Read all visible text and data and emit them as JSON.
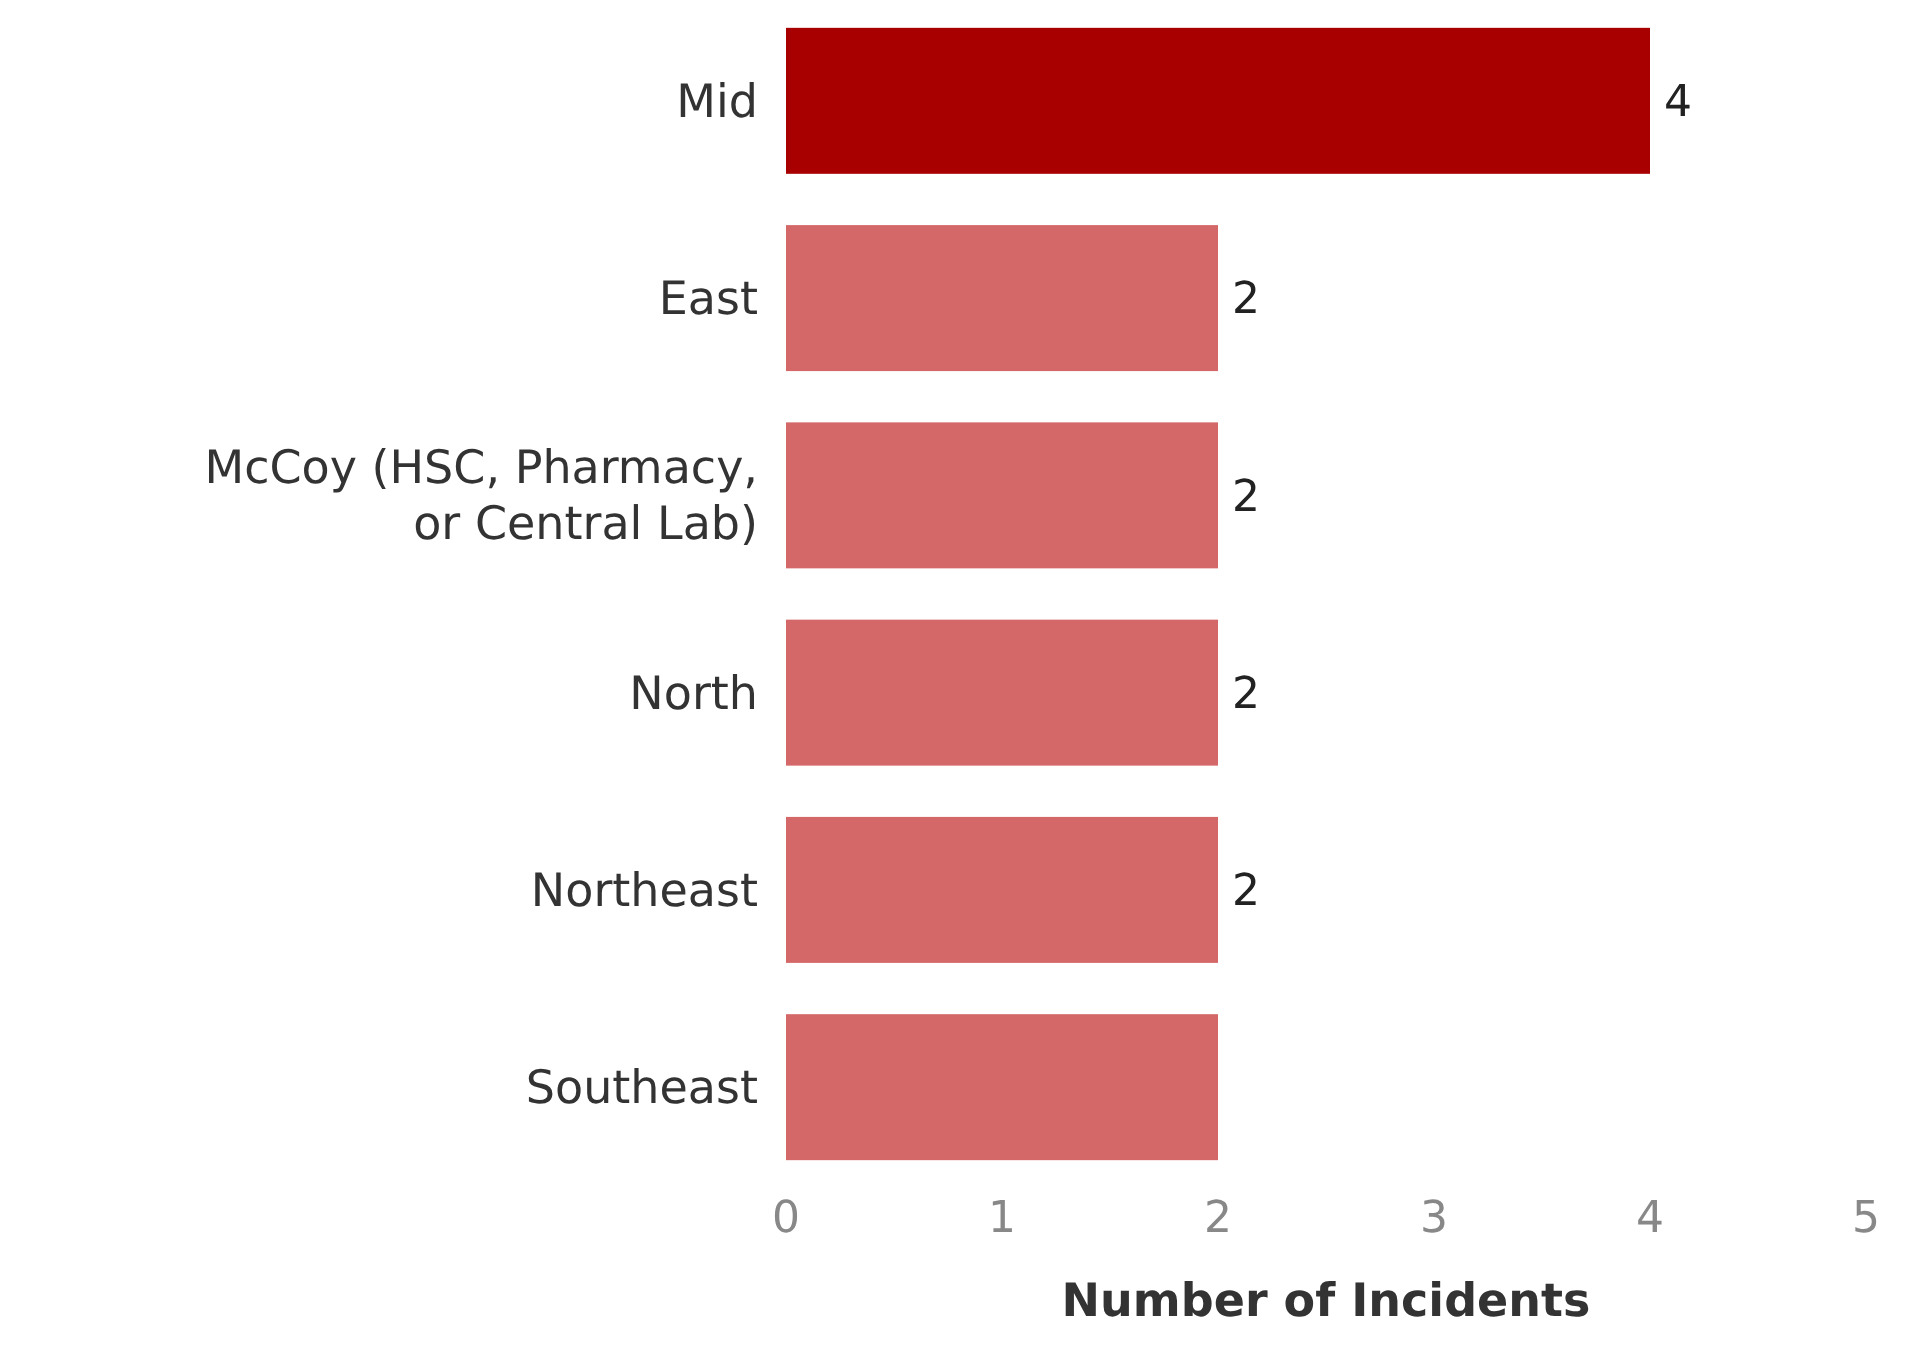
{
  "chart_data": {
    "type": "bar",
    "orientation": "horizontal",
    "xlabel": "Number of Incidents",
    "categories": [
      "Mid",
      "East",
      "McCoy (HSC, Pharmacy, or Central Lab)",
      "North",
      "Northeast",
      "Southeast"
    ],
    "values": [
      4,
      2,
      2,
      2,
      2,
      2
    ],
    "colors": [
      "#a80000",
      "#d46868",
      "#d46868",
      "#d46868",
      "#d46868",
      "#d46868"
    ],
    "value_labels": [
      "4",
      "2",
      "2",
      "2",
      "2",
      null
    ],
    "xlim": [
      0,
      5
    ],
    "xticks": [
      0,
      1,
      2,
      3,
      4,
      5
    ],
    "grid": false
  }
}
